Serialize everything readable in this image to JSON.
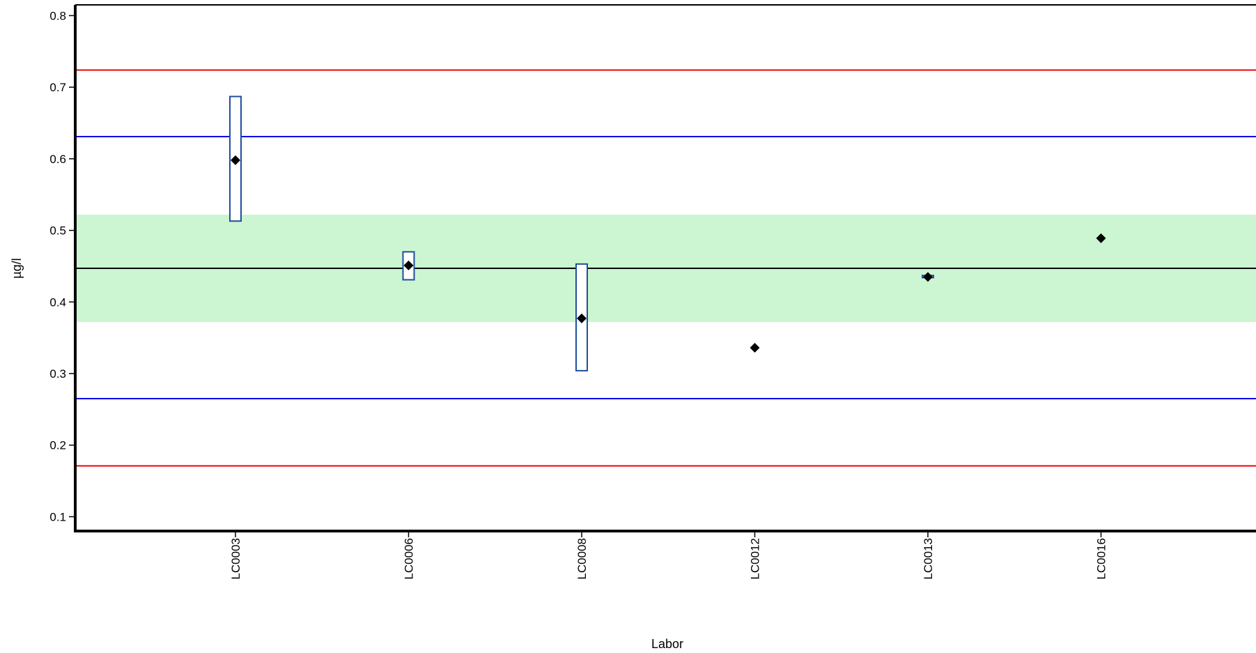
{
  "chart_data": {
    "type": "scatter",
    "xlabel": "Labor",
    "ylabel": "µg/l",
    "ylim": [
      0.08,
      0.815
    ],
    "y_ticks": [
      0.1,
      0.2,
      0.3,
      0.4,
      0.5,
      0.6,
      0.7,
      0.8
    ],
    "y_tick_labels": [
      "0.1",
      "0.2",
      "0.3",
      "0.4",
      "0.5",
      "0.6",
      "0.7",
      "0.8"
    ],
    "categories": [
      "LC0003",
      "LC0006",
      "LC0008",
      "LC0012",
      "LC0013",
      "LC0016"
    ],
    "values": [
      0.598,
      0.451,
      0.377,
      0.336,
      0.435,
      0.489
    ],
    "uncertainty": [
      {
        "low": 0.513,
        "high": 0.687
      },
      {
        "low": 0.431,
        "high": 0.47
      },
      {
        "low": 0.304,
        "high": 0.453
      },
      null,
      {
        "low": 0.434,
        "high": 0.437
      },
      null
    ],
    "assigned_value": 0.447,
    "tolerance_band": [
      0.372,
      0.522
    ],
    "inner_limits": [
      0.265,
      0.631
    ],
    "outer_limits": [
      0.171,
      0.724
    ],
    "colors": {
      "band": "#ccf5d1",
      "assigned_line": "#000000",
      "inner_limits": "#0000ee",
      "outer_limits": "#ee0000",
      "uncertainty_box": "#1f4e9e",
      "marker": "#000000"
    },
    "marker_shape": "diamond",
    "grid": false
  }
}
